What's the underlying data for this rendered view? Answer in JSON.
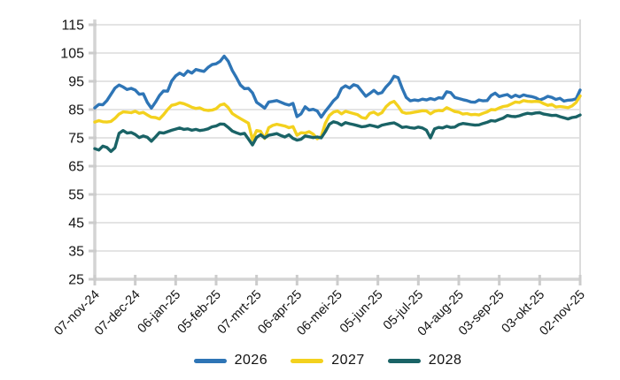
{
  "chart_data": {
    "type": "line",
    "title": "",
    "xlabel": "",
    "ylabel": "",
    "ylim": [
      25,
      115
    ],
    "y_ticks": [
      25,
      35,
      45,
      55,
      65,
      75,
      85,
      95,
      105,
      115
    ],
    "x_tick_labels": [
      "07-nov-24",
      "07-dec-24",
      "06-jan-25",
      "05-feb-25",
      "07-mrt-25",
      "06-apr-25",
      "06-mei-25",
      "05-jun-25",
      "05-jul-25",
      "04-aug-25",
      "03-sep-25",
      "03-okt-25",
      "02-nov-25"
    ],
    "x_total_days": 360,
    "x_step_days": 3,
    "grid": "horizontal",
    "legend_position": "bottom",
    "grid_color": "#dcdcdc",
    "axis_color": "#d4d4d4",
    "tick_color": "#cccccc",
    "label_color": "#141414",
    "series": [
      {
        "name": "2026",
        "color": "#2e75b6",
        "values": [
          85.6,
          86.8,
          86.7,
          88.2,
          90.4,
          92.6,
          93.7,
          93.0,
          92.1,
          92.5,
          91.9,
          90.4,
          90.6,
          87.5,
          85.5,
          87.6,
          90.0,
          91.6,
          91.5,
          95.1,
          96.9,
          97.9,
          97.1,
          98.7,
          97.9,
          99.2,
          98.8,
          98.5,
          99.9,
          100.9,
          101.2,
          102.1,
          103.9,
          102.1,
          98.8,
          96.4,
          93.7,
          92.4,
          92.5,
          90.9,
          87.6,
          86.6,
          85.5,
          87.7,
          87.9,
          88.2,
          87.6,
          87.0,
          86.6,
          87.2,
          82.5,
          83.5,
          86.0,
          84.8,
          85.1,
          84.5,
          82.3,
          84.4,
          86.2,
          88.1,
          89.4,
          92.5,
          93.4,
          92.6,
          93.8,
          93.3,
          91.5,
          89.7,
          90.7,
          91.8,
          90.6,
          91.0,
          93.0,
          94.5,
          96.8,
          96.3,
          92.5,
          89.3,
          88.1,
          88.4,
          88.2,
          88.7,
          88.4,
          88.9,
          88.5,
          89.2,
          89.0,
          91.3,
          91.0,
          89.3,
          88.9,
          88.5,
          88.2,
          87.7,
          87.6,
          88.4,
          88.1,
          88.2,
          90.0,
          90.8,
          89.6,
          90.0,
          90.3,
          89.3,
          90.1,
          89.5,
          90.2,
          89.8,
          89.6,
          89.2,
          88.4,
          88.9,
          89.7,
          89.3,
          88.6,
          89.0,
          88.0,
          88.3,
          88.4,
          88.8,
          91.9
        ]
      },
      {
        "name": "2027",
        "color": "#f3d11e",
        "values": [
          80.6,
          81.1,
          80.7,
          80.6,
          80.8,
          81.9,
          83.4,
          84.2,
          84.1,
          83.9,
          84.4,
          83.7,
          84.0,
          83.1,
          82.3,
          82.2,
          81.7,
          83.2,
          85.0,
          86.5,
          86.8,
          87.4,
          87.1,
          86.5,
          85.8,
          85.4,
          85.6,
          84.9,
          84.7,
          84.8,
          85.3,
          86.6,
          87.0,
          85.7,
          83.6,
          82.7,
          81.8,
          81.0,
          80.2,
          74.3,
          77.6,
          77.3,
          74.8,
          78.6,
          79.4,
          79.8,
          79.5,
          79.2,
          78.6,
          79.0,
          75.9,
          76.8,
          76.7,
          77.2,
          76.3,
          74.7,
          75.5,
          80.2,
          82.9,
          84.1,
          84.5,
          83.5,
          84.4,
          84.0,
          83.6,
          83.2,
          82.2,
          81.9,
          83.7,
          84.1,
          83.2,
          83.9,
          86.0,
          87.3,
          87.9,
          86.2,
          84.1,
          83.7,
          83.8,
          84.1,
          84.3,
          84.6,
          84.5,
          83.5,
          84.4,
          84.7,
          84.6,
          85.7,
          85.0,
          84.3,
          84.1,
          83.4,
          83.6,
          83.2,
          83.3,
          83.1,
          83.7,
          84.2,
          85.0,
          84.9,
          85.6,
          86.1,
          86.3,
          87.0,
          87.7,
          87.5,
          88.2,
          87.9,
          87.8,
          87.9,
          87.8,
          87.1,
          86.5,
          86.8,
          85.9,
          86.1,
          85.9,
          85.7,
          86.3,
          87.5,
          89.8
        ]
      },
      {
        "name": "2028",
        "color": "#1a6366",
        "values": [
          71.2,
          70.7,
          72.1,
          71.6,
          70.2,
          71.5,
          76.6,
          77.6,
          76.7,
          76.9,
          76.2,
          75.1,
          75.7,
          75.2,
          73.8,
          75.3,
          76.9,
          76.7,
          77.2,
          77.7,
          78.1,
          78.5,
          78.0,
          78.2,
          77.7,
          78.0,
          77.6,
          77.8,
          78.2,
          78.9,
          79.2,
          79.9,
          79.8,
          78.7,
          77.4,
          76.8,
          76.3,
          76.6,
          74.6,
          72.5,
          75.2,
          76.1,
          75.0,
          75.9,
          76.2,
          76.5,
          75.8,
          75.3,
          76.1,
          74.8,
          74.2,
          74.5,
          75.7,
          75.4,
          75.1,
          75.3,
          75.0,
          77.2,
          79.8,
          80.7,
          80.3,
          79.5,
          80.4,
          80.0,
          79.7,
          79.3,
          78.9,
          79.1,
          79.5,
          79.2,
          78.8,
          79.5,
          79.8,
          80.1,
          80.3,
          79.6,
          78.7,
          78.9,
          78.6,
          78.4,
          78.8,
          78.5,
          77.7,
          75.0,
          78.2,
          78.7,
          78.5,
          79.1,
          78.7,
          78.8,
          79.7,
          80.1,
          79.9,
          79.7,
          79.5,
          79.6,
          80.1,
          80.5,
          81.1,
          80.9,
          81.5,
          82.0,
          82.9,
          82.6,
          82.5,
          82.8,
          83.3,
          83.7,
          83.5,
          83.8,
          83.9,
          83.4,
          83.2,
          82.9,
          83.0,
          82.5,
          82.1,
          81.7,
          82.2,
          82.4,
          83.1
        ]
      }
    ]
  }
}
